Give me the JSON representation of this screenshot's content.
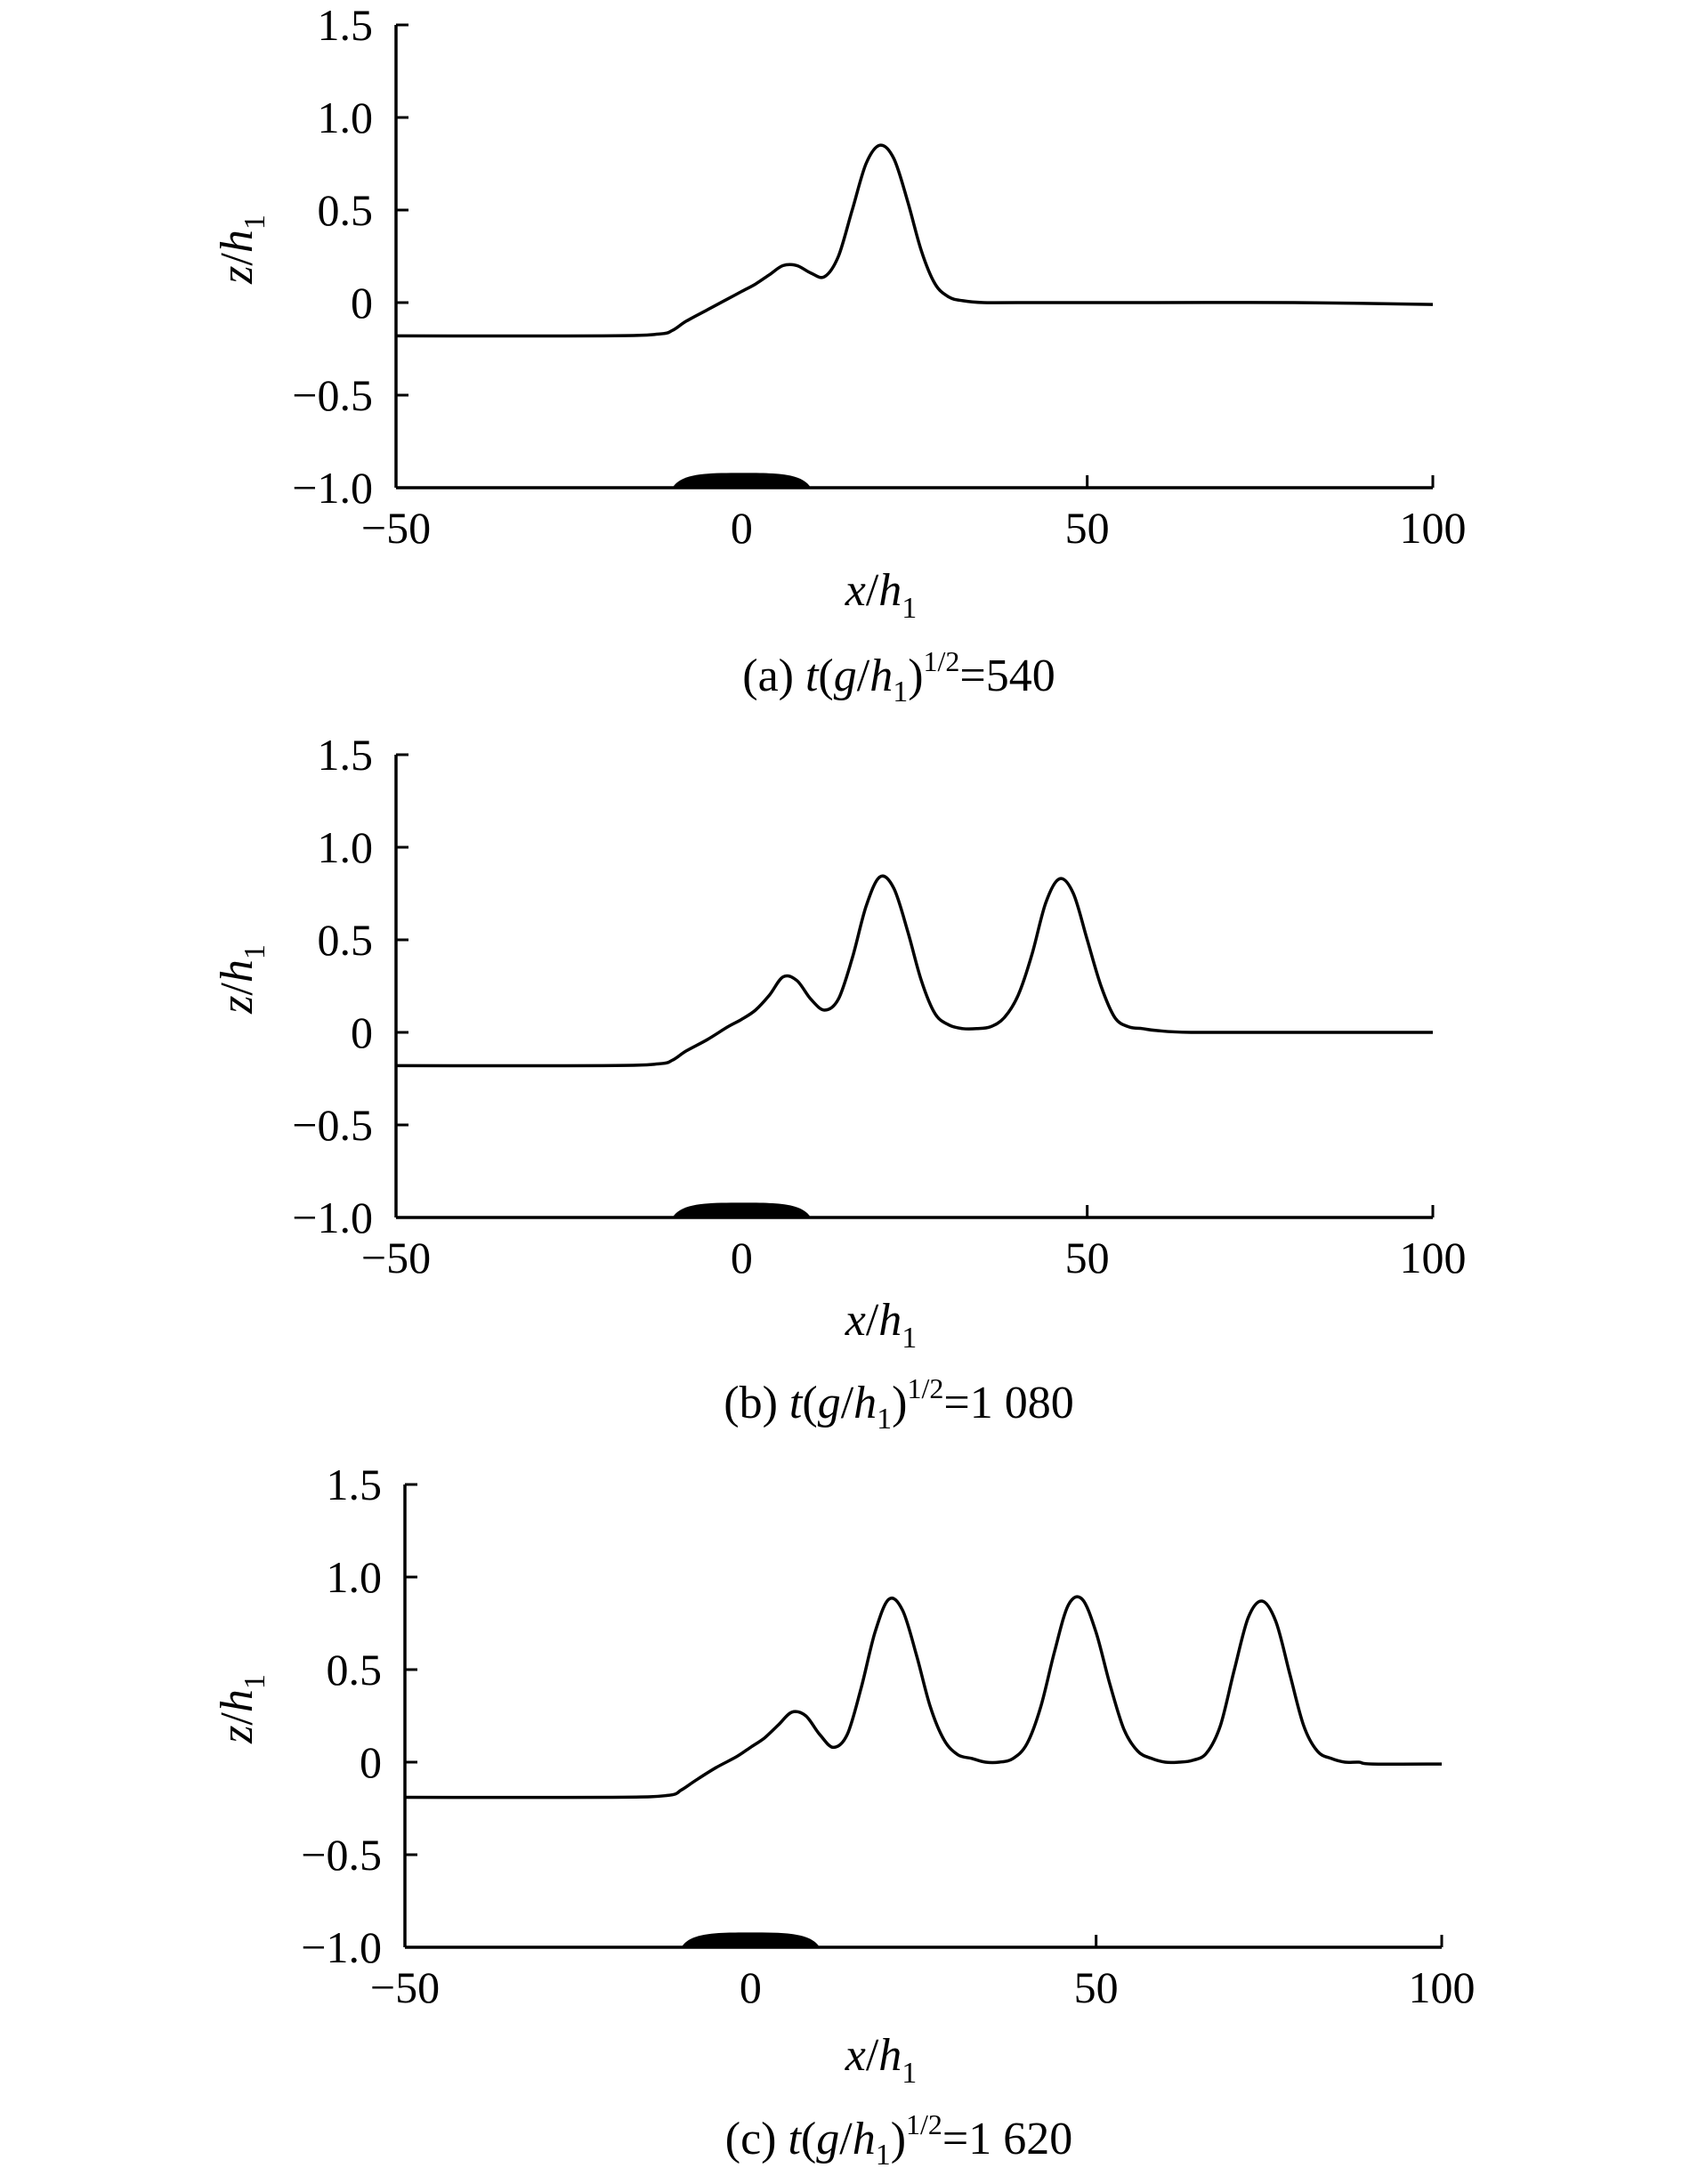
{
  "figure": {
    "panels": [
      {
        "xlabel": {
          "var": "x",
          "sub": "1"
        },
        "ylabel": {
          "var": "z",
          "sub": "1"
        },
        "caption": {
          "prefix": "(a) ",
          "t": "t",
          "open": "(",
          "g": "g",
          "slash": "/",
          "h": "h",
          "sub": "1",
          "close": ")",
          "sup": "1/2",
          "eq": "=540"
        }
      },
      {
        "xlabel": {
          "var": "x",
          "sub": "1"
        },
        "ylabel": {
          "var": "z",
          "sub": "1"
        },
        "caption": {
          "prefix": "(b) ",
          "t": "t",
          "open": "(",
          "g": "g",
          "slash": "/",
          "h": "h",
          "sub": "1",
          "close": ")",
          "sup": "1/2",
          "eq": "=1 080"
        }
      },
      {
        "xlabel": {
          "var": "x",
          "sub": "1"
        },
        "ylabel": {
          "var": "z",
          "sub": "1"
        },
        "caption": {
          "prefix": "(c) ",
          "t": "t",
          "open": "(",
          "g": "g",
          "slash": "/",
          "h": "h",
          "sub": "1",
          "close": ")",
          "sup": "1/2",
          "eq": "=1 620"
        }
      }
    ]
  },
  "chart_data": [
    {
      "type": "line",
      "xlabel": "x/h1",
      "ylabel": "z/h1",
      "xlim": [
        -50,
        100
      ],
      "ylim": [
        -1.0,
        1.5
      ],
      "xticks": [
        -50,
        0,
        50,
        100
      ],
      "xtick_labels": [
        "−50",
        "0",
        "50",
        "100"
      ],
      "yticks": [
        1.5,
        1.0,
        0.5,
        0,
        -0.5,
        -1.0
      ],
      "ytick_labels": [
        "1.5",
        "1.0",
        "0.5",
        "0",
        "−0.5",
        "−1.0"
      ],
      "grid": false,
      "obstacle": {
        "x_start": -10,
        "x_end": 10,
        "height": 0.08
      },
      "series": [
        {
          "x": [
            -50,
            -20,
            -12,
            -10,
            -8,
            -5,
            -2,
            0,
            2,
            4,
            6,
            8,
            10,
            12,
            14,
            16,
            18,
            20,
            22,
            24,
            26,
            28,
            30,
            32,
            35,
            40,
            60,
            80,
            100
          ],
          "y": [
            -0.18,
            -0.18,
            -0.17,
            -0.15,
            -0.1,
            -0.04,
            0.02,
            0.06,
            0.1,
            0.15,
            0.2,
            0.2,
            0.16,
            0.14,
            0.25,
            0.5,
            0.75,
            0.85,
            0.78,
            0.55,
            0.28,
            0.1,
            0.03,
            0.01,
            0.0,
            0.0,
            0.0,
            0.0,
            -0.01
          ]
        }
      ]
    },
    {
      "type": "line",
      "xlabel": "x/h1",
      "ylabel": "z/h1",
      "xlim": [
        -50,
        100
      ],
      "ylim": [
        -1.0,
        1.5
      ],
      "xticks": [
        -50,
        0,
        50,
        100
      ],
      "xtick_labels": [
        "−50",
        "0",
        "50",
        "100"
      ],
      "yticks": [
        1.5,
        1.0,
        0.5,
        0,
        -0.5,
        -1.0
      ],
      "ytick_labels": [
        "1.5",
        "1.0",
        "0.5",
        "0",
        "−0.5",
        "−1.0"
      ],
      "grid": false,
      "obstacle": {
        "x_start": -10,
        "x_end": 10,
        "height": 0.08
      },
      "series": [
        {
          "x": [
            -50,
            -20,
            -12,
            -10,
            -8,
            -5,
            -2,
            0,
            2,
            4,
            6,
            8,
            10,
            12,
            14,
            16,
            18,
            20,
            22,
            24,
            26,
            28,
            30,
            32,
            34,
            36,
            38,
            40,
            42,
            44,
            46,
            48,
            50,
            52,
            54,
            56,
            58,
            60,
            65,
            80,
            100
          ],
          "y": [
            -0.18,
            -0.18,
            -0.17,
            -0.15,
            -0.1,
            -0.04,
            0.03,
            0.07,
            0.12,
            0.2,
            0.3,
            0.28,
            0.18,
            0.12,
            0.18,
            0.4,
            0.68,
            0.84,
            0.78,
            0.55,
            0.28,
            0.1,
            0.04,
            0.02,
            0.02,
            0.03,
            0.08,
            0.2,
            0.42,
            0.7,
            0.83,
            0.75,
            0.5,
            0.25,
            0.08,
            0.03,
            0.02,
            0.01,
            0.0,
            0.0,
            0.0
          ]
        }
      ]
    },
    {
      "type": "line",
      "xlabel": "x/h1",
      "ylabel": "z/h1",
      "xlim": [
        -50,
        100
      ],
      "ylim": [
        -1.0,
        1.5
      ],
      "xticks": [
        -50,
        0,
        50,
        100
      ],
      "xtick_labels": [
        "−50",
        "0",
        "50",
        "100"
      ],
      "yticks": [
        1.5,
        1.0,
        0.5,
        0,
        -0.5,
        -1.0
      ],
      "ytick_labels": [
        "1.5",
        "1.0",
        "0.5",
        "0",
        "−0.5",
        "−1.0"
      ],
      "grid": false,
      "obstacle": {
        "x_start": -10,
        "x_end": 10,
        "height": 0.08
      },
      "series": [
        {
          "x": [
            -50,
            -20,
            -12,
            -10,
            -8,
            -5,
            -2,
            0,
            2,
            4,
            6,
            8,
            10,
            12,
            14,
            16,
            18,
            20,
            22,
            24,
            26,
            28,
            30,
            32,
            34,
            36,
            38,
            40,
            42,
            44,
            46,
            48,
            50,
            52,
            54,
            56,
            58,
            60,
            62,
            64,
            66,
            68,
            70,
            72,
            74,
            76,
            78,
            80,
            82,
            84,
            86,
            88,
            90,
            100
          ],
          "y": [
            -0.19,
            -0.19,
            -0.18,
            -0.15,
            -0.1,
            -0.03,
            0.03,
            0.08,
            0.13,
            0.2,
            0.27,
            0.25,
            0.15,
            0.08,
            0.15,
            0.4,
            0.7,
            0.88,
            0.82,
            0.58,
            0.3,
            0.12,
            0.04,
            0.02,
            0.0,
            0.0,
            0.02,
            0.1,
            0.3,
            0.6,
            0.85,
            0.88,
            0.7,
            0.42,
            0.18,
            0.06,
            0.02,
            0.0,
            0.0,
            0.01,
            0.05,
            0.2,
            0.5,
            0.78,
            0.87,
            0.76,
            0.48,
            0.2,
            0.06,
            0.02,
            0.0,
            0.0,
            -0.01,
            -0.01
          ]
        }
      ]
    }
  ]
}
